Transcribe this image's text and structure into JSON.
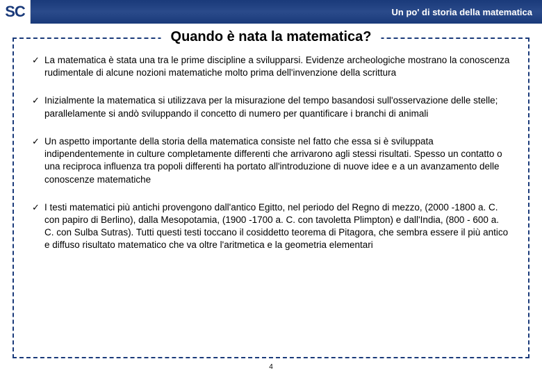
{
  "header": {
    "logo_text": "SC",
    "title": "Un po' di storia della matematica"
  },
  "section": {
    "title": "Quando è nata la matematica?"
  },
  "bullets": [
    {
      "text": "La matematica è stata una tra le prime discipline a svilupparsi. Evidenze archeologiche mostrano la conoscenza rudimentale di alcune nozioni matematiche molto prima dell'invenzione della scrittura"
    },
    {
      "text": "Inizialmente la matematica si utilizzava per la misurazione del tempo basandosi sull'osservazione delle stelle; parallelamente si andò sviluppando il concetto di numero per quantificare i branchi di animali"
    },
    {
      "text": "Un aspetto importante della storia della matematica consiste nel fatto che essa si è sviluppata indipendentemente in culture completamente differenti che arrivarono agli stessi risultati. Spesso un contatto o una reciproca influenza tra popoli differenti ha portato all'introduzione di nuove idee e a un avanzamento delle conoscenze matematiche"
    },
    {
      "text": "I testi matematici più antichi provengono dall'antico Egitto, nel periodo del Regno di mezzo, (2000 -1800 a. C. con papiro di Berlino), dalla Mesopotamia, (1900 -1700 a. C. con tavoletta Plimpton) e dall'India, (800 - 600 a. C. con Sulba Sutras). Tutti questi testi toccano il cosiddetto teorema di Pitagora, che sembra essere il più antico e diffuso risultato matematico che va oltre l'aritmetica e la geometria elementari"
    }
  ],
  "footer": {
    "page_number": "4"
  },
  "colors": {
    "header_bg": "#1a3a7a",
    "border": "#1a3a7a",
    "text": "#000000",
    "bg": "#ffffff"
  }
}
